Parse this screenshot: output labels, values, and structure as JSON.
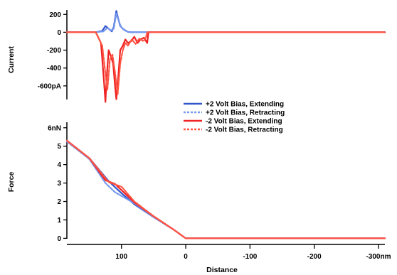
{
  "chart_data": [
    {
      "type": "line",
      "ylabel": "Current",
      "ylim": [
        -800,
        250
      ],
      "yticks": [
        {
          "value": 200,
          "label": "200"
        },
        {
          "value": 0,
          "label": "0"
        },
        {
          "value": -200,
          "label": "-200"
        },
        {
          "value": -400,
          "label": "-400"
        },
        {
          "value": -600,
          "label": "-600pA"
        }
      ],
      "xlim": [
        185,
        -310
      ],
      "series": [
        {
          "name": "+2 Volt Bias, Extending",
          "color": "#3355cc",
          "dash": "solid",
          "x": [
            185,
            140,
            130,
            125,
            120,
            115,
            112,
            108,
            105,
            102,
            98,
            94,
            90,
            85,
            80,
            60,
            0,
            -100,
            -200,
            -310
          ],
          "y": [
            0,
            0,
            15,
            70,
            40,
            10,
            60,
            240,
            150,
            70,
            40,
            20,
            5,
            0,
            0,
            0,
            0,
            0,
            0,
            0
          ]
        },
        {
          "name": "+2 Volt Bias, Retracting",
          "color": "#7799ee",
          "dash": "dashed",
          "x": [
            185,
            140,
            128,
            122,
            116,
            112,
            108,
            104,
            100,
            95,
            90,
            80,
            60,
            0,
            -100,
            -200,
            -310
          ],
          "y": [
            0,
            0,
            10,
            50,
            20,
            40,
            210,
            120,
            50,
            20,
            5,
            0,
            0,
            0,
            0,
            0,
            0
          ]
        },
        {
          "name": "-2 Volt Bias, Extending",
          "color": "#ee2222",
          "dash": "solid",
          "x": [
            185,
            140,
            132,
            128,
            125,
            123,
            120,
            117,
            113,
            110,
            108,
            105,
            102,
            98,
            94,
            90,
            85,
            80,
            75,
            70,
            65,
            60,
            58,
            0,
            -100,
            -200,
            -310
          ],
          "y": [
            0,
            0,
            -120,
            -480,
            -780,
            -500,
            -200,
            -260,
            -350,
            -600,
            -750,
            -500,
            -200,
            -150,
            -80,
            -120,
            -100,
            -50,
            -120,
            -80,
            -60,
            -120,
            0,
            0,
            0,
            0,
            0
          ]
        },
        {
          "name": "-2 Volt Bias, Retracting",
          "color": "#ff5544",
          "dash": "dashed",
          "x": [
            185,
            140,
            130,
            126,
            122,
            118,
            114,
            110,
            106,
            102,
            98,
            94,
            90,
            84,
            78,
            72,
            66,
            62,
            60,
            0,
            -100,
            -200,
            -310
          ],
          "y": [
            0,
            0,
            -150,
            -400,
            -650,
            -300,
            -250,
            -450,
            -700,
            -350,
            -200,
            -120,
            -150,
            -80,
            -130,
            -70,
            -100,
            -60,
            0,
            0,
            0,
            0,
            0
          ]
        }
      ]
    },
    {
      "type": "line",
      "xlabel": "Distance",
      "ylabel": "Force",
      "xlim": [
        185,
        -310
      ],
      "ylim": [
        -0.1,
        6.3
      ],
      "xticks": [
        {
          "value": 100,
          "label": "100"
        },
        {
          "value": 0,
          "label": "0"
        },
        {
          "value": -100,
          "label": "-100"
        },
        {
          "value": -200,
          "label": "-200"
        },
        {
          "value": -300,
          "label": "-300nm"
        }
      ],
      "yticks": [
        {
          "value": 6,
          "label": "6nN"
        },
        {
          "value": 5,
          "label": "5"
        },
        {
          "value": 4,
          "label": "4"
        },
        {
          "value": 3,
          "label": "3"
        },
        {
          "value": 2,
          "label": "2"
        },
        {
          "value": 1,
          "label": "1"
        },
        {
          "value": 0,
          "label": "0"
        }
      ],
      "series": [
        {
          "name": "+2 Volt Bias, Extending",
          "color": "#3355cc",
          "dash": "solid",
          "x": [
            185,
            150,
            120,
            100,
            80,
            50,
            20,
            0,
            -100,
            -200,
            -310
          ],
          "y": [
            5.3,
            4.35,
            3.1,
            2.45,
            1.85,
            1.15,
            0.5,
            0,
            0,
            0,
            0
          ]
        },
        {
          "name": "+2 Volt Bias, Retracting",
          "color": "#7799ee",
          "dash": "dashed",
          "x": [
            185,
            150,
            125,
            110,
            95,
            80,
            50,
            20,
            0,
            -100,
            -200,
            -310
          ],
          "y": [
            5.25,
            4.3,
            3.0,
            2.5,
            2.2,
            1.9,
            1.15,
            0.5,
            0,
            0,
            0,
            0
          ]
        },
        {
          "name": "-2 Volt Bias, Extending",
          "color": "#ee2222",
          "dash": "solid",
          "x": [
            185,
            150,
            125,
            110,
            95,
            80,
            50,
            20,
            0,
            -100,
            -200,
            -310
          ],
          "y": [
            5.3,
            4.35,
            3.15,
            2.95,
            2.45,
            1.95,
            1.2,
            0.5,
            0,
            0,
            0,
            0
          ]
        },
        {
          "name": "-2 Volt Bias, Retracting",
          "color": "#ff5544",
          "dash": "dashed",
          "x": [
            185,
            150,
            120,
            100,
            80,
            50,
            20,
            0,
            -100,
            -200,
            -310
          ],
          "y": [
            5.3,
            4.35,
            3.05,
            2.8,
            2.0,
            1.2,
            0.5,
            0,
            0,
            0,
            0
          ]
        }
      ]
    }
  ],
  "legend": {
    "placement": "between-panels",
    "entries": [
      {
        "label": "+2 Volt Bias, Extending",
        "color": "#3355cc",
        "dash": "solid"
      },
      {
        "label": "+2 Volt Bias, Retracting",
        "color": "#7799ee",
        "dash": "dashed"
      },
      {
        "label": "-2 Volt Bias, Extending",
        "color": "#ee2222",
        "dash": "solid"
      },
      {
        "label": "-2 Volt Bias, Retracting",
        "color": "#ff5544",
        "dash": "dashed"
      }
    ]
  }
}
